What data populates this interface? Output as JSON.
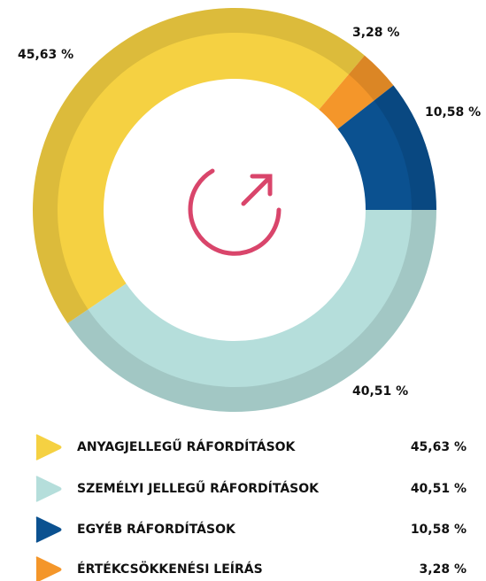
{
  "chart_data": {
    "type": "donut",
    "categories": [
      "ANYAGJELLEGŰ RÁFORDÍTÁSOK",
      "SZEMÉLYI JELLEGŰ RÁFORDÍTÁSOK",
      "EGYÉB RÁFORDÍTÁSOK",
      "ÉRTÉKCSÖKKENÉSI LEÍRÁS"
    ],
    "values": [
      45.63,
      40.51,
      10.58,
      3.28
    ],
    "value_labels": [
      "45,63 %",
      "40,51 %",
      "10,58 %",
      "3,28 %"
    ],
    "colors": [
      "#f5d142",
      "#b5dedb",
      "#0b5190",
      "#f4962a"
    ]
  }
}
